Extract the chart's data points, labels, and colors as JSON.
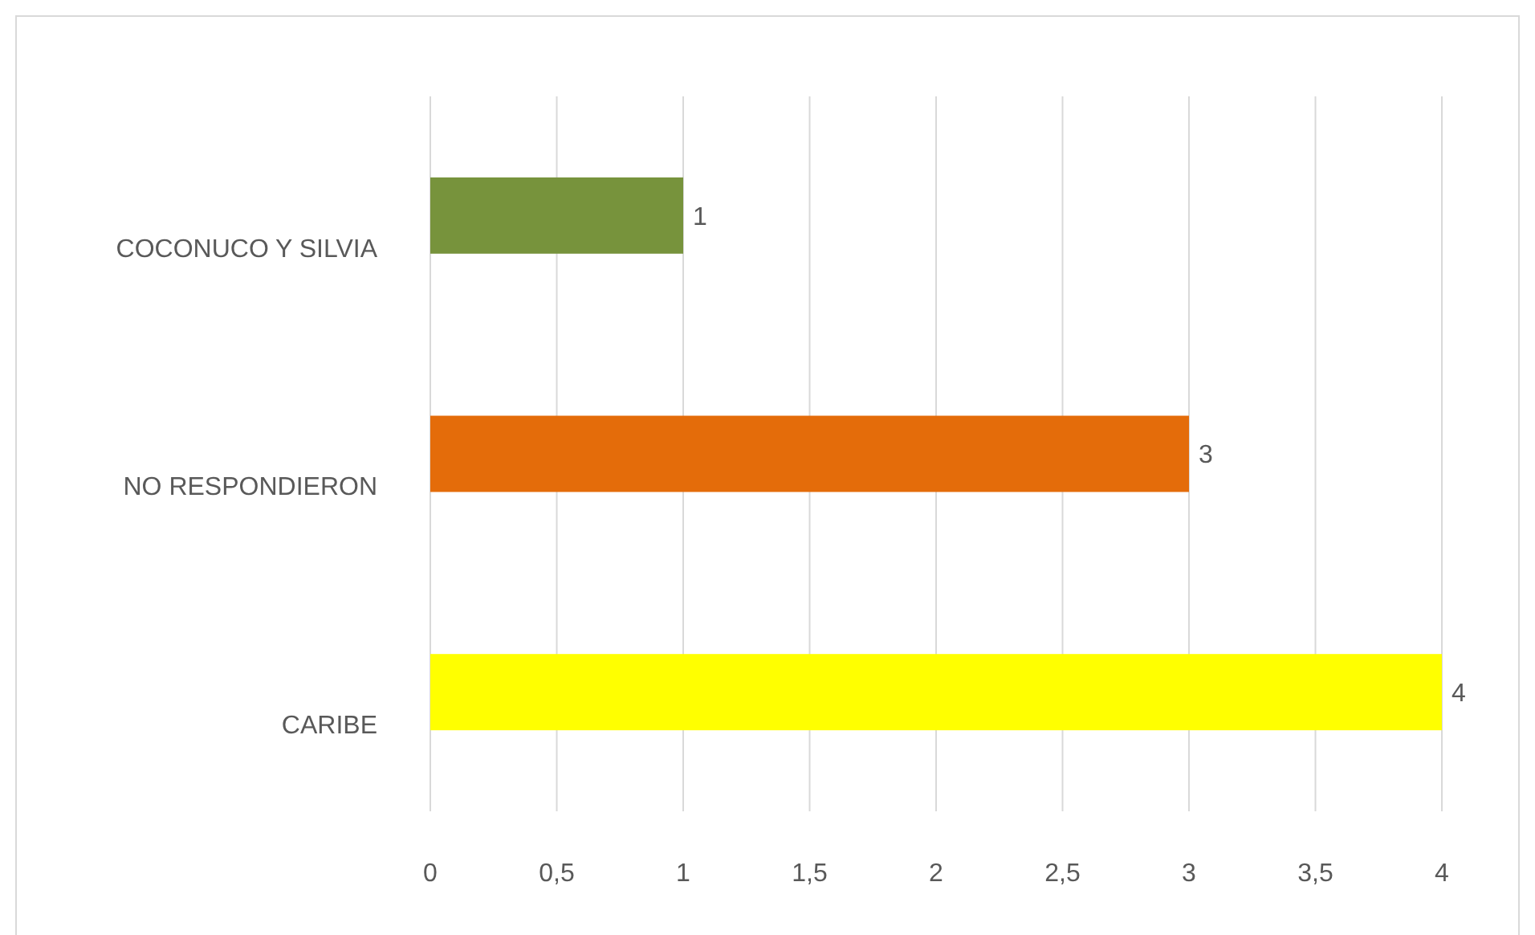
{
  "chart_data": {
    "type": "bar",
    "orientation": "horizontal",
    "categories": [
      "COCONUCO Y SILVIA",
      "NO RESPONDIERON",
      "CARIBE"
    ],
    "values": [
      1,
      3,
      4
    ],
    "colors": [
      "#77933c",
      "#e46c0a",
      "#ffff00"
    ],
    "xlim": [
      0,
      4
    ],
    "xticks": [
      0,
      {
        "value": 0.5,
        "label": "0,5"
      },
      1,
      {
        "value": 1.5,
        "label": "1,5"
      },
      2,
      {
        "value": 2.5,
        "label": "2,5"
      },
      3,
      {
        "value": 3.5,
        "label": "3,5"
      },
      4
    ],
    "grid": "x",
    "data_labels": true
  }
}
